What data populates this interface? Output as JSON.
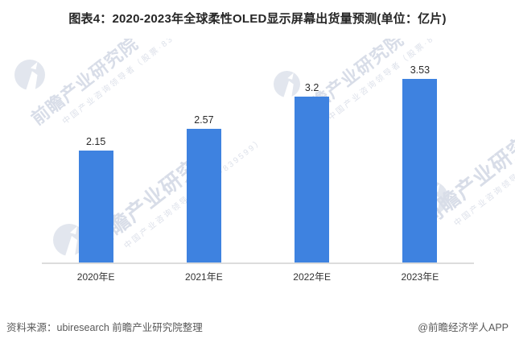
{
  "title": "图表4：2020-2023年全球柔性OLED显示屏幕出货量预测(单位：亿片)",
  "chart_data": {
    "type": "bar",
    "title": "图表4：2020-2023年全球柔性OLED显示屏幕出货量预测",
    "unit": "亿片",
    "categories": [
      "2020年E",
      "2021年E",
      "2022年E",
      "2023年E"
    ],
    "values": [
      2.15,
      2.57,
      3.2,
      3.53
    ],
    "value_labels": [
      "2.15",
      "2.57",
      "3.2",
      "3.53"
    ],
    "xlabel": "",
    "ylabel": "",
    "ylim": [
      0,
      4.2
    ],
    "grid": false,
    "legend": "none",
    "bar_color": "#3e82e0",
    "axis_line_color": "#dcdcdc"
  },
  "watermark": {
    "brand_large": "前瞻产业研究院",
    "brand_small": "中国产业咨询领导者（股票·839599）",
    "logo": "qianzhan-logo"
  },
  "footer": {
    "source": "资料来源：ubiresearch 前瞻产业研究院整理",
    "attribution": "@前瞻经济学人APP"
  }
}
